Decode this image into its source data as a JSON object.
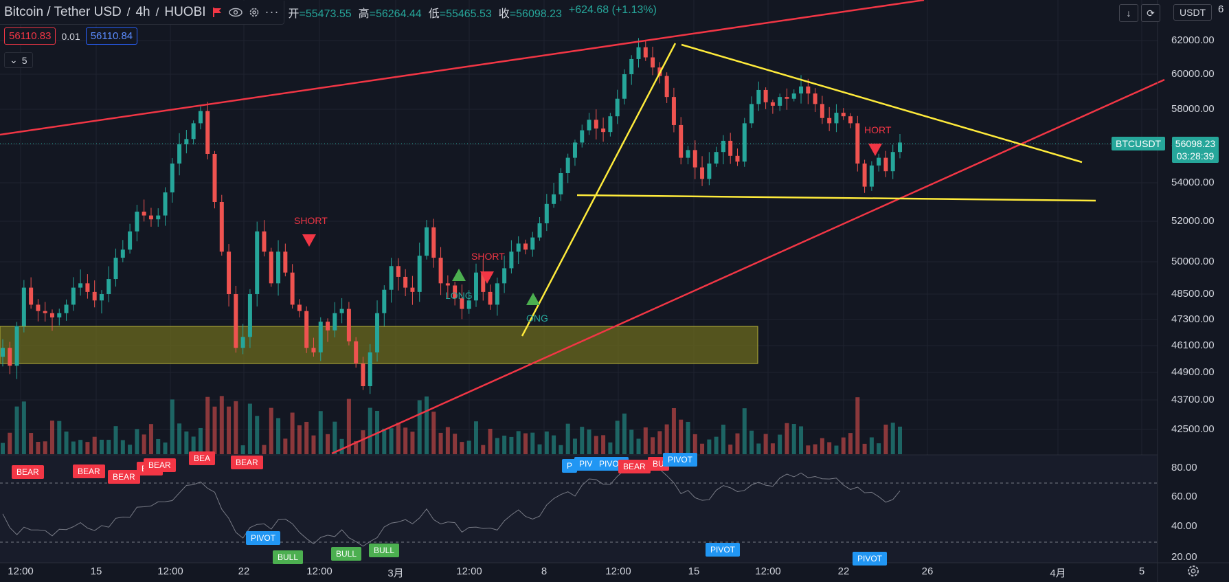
{
  "header": {
    "symbol_title": "Bitcoin / Tether USD",
    "interval": "4h",
    "exchange": "HUOBI",
    "ohlc": [
      {
        "label": "开",
        "value": "=55473.55"
      },
      {
        "label": "高",
        "value": "=56264.44"
      },
      {
        "label": "低",
        "value": "=55465.53"
      },
      {
        "label": "收",
        "value": "=56098.23"
      }
    ],
    "change": "+624.68 (+1.13%)",
    "bid": "56110.83",
    "spread": "0.01",
    "ask": "56110.84",
    "indicator_count": "5",
    "currency": "USDT"
  },
  "price_axis": {
    "labels": [
      "62000.00",
      "60000.00",
      "58000.00",
      "56000.00",
      "54000.00",
      "52000.00",
      "50000.00",
      "48500.00",
      "47300.00",
      "46100.00",
      "44900.00",
      "43700.00",
      "42500.00"
    ],
    "top_clip": "6",
    "last_symbol": "BTCUSDT",
    "last_price": "56098.23",
    "countdown": "03:28:39",
    "osc_labels": [
      "80.00",
      "60.00",
      "40.00",
      "20.00"
    ]
  },
  "time_axis": [
    "12:00",
    "15",
    "12:00",
    "22",
    "12:00",
    "3月",
    "12:00",
    "8",
    "12:00",
    "15",
    "12:00",
    "22",
    "26",
    "4月",
    "5"
  ],
  "signals": [
    {
      "type": "short",
      "text": "SHORT"
    },
    {
      "type": "short",
      "text": "SHORT"
    },
    {
      "type": "long",
      "text": "LONG"
    },
    {
      "type": "long",
      "text": "ONG"
    },
    {
      "type": "short",
      "text": "HORT"
    }
  ],
  "osc_tags": {
    "bear": "BEAR",
    "bull": "BULL",
    "pivot": "PIVOT",
    "bear_partial": "BEA",
    "bull_partial": "BU",
    "pivot_partial": "PIV",
    "pivot_clip": "P"
  },
  "colors": {
    "background": "#131722",
    "up": "#26a69a",
    "down": "#ef5350",
    "trend_red": "#f23645",
    "trend_yellow": "#ffeb3b",
    "zone": "#6b6a1e",
    "pivot": "#2196f3",
    "bull": "#4caf50"
  },
  "chart_data": {
    "type": "candlestick",
    "title": "Bitcoin / Tether USD",
    "ylim": [
      41500,
      63000
    ],
    "x_labels": [
      "12:00",
      "15",
      "12:00",
      "22",
      "12:00",
      "3月",
      "12:00",
      "8",
      "12:00",
      "15",
      "12:00",
      "22",
      "26",
      "4月",
      "5"
    ],
    "close_path": [
      46000,
      45200,
      47000,
      48800,
      48000,
      47700,
      47600,
      47400,
      47600,
      48000,
      48800,
      49000,
      48600,
      48200,
      48500,
      49200,
      50200,
      50600,
      51500,
      52500,
      52300,
      52100,
      52300,
      53500,
      55000,
      56000,
      56300,
      57200,
      57900,
      55500,
      53000,
      50500,
      48500,
      46000,
      46500,
      48500,
      51500,
      50500,
      49000,
      50500,
      49500,
      48000,
      47700,
      46000,
      45800,
      47200,
      46800,
      47600,
      47800,
      46300,
      45300,
      44300,
      45800,
      47600,
      48700,
      49800,
      49300,
      48800,
      48600,
      50300,
      51700,
      50200,
      49000,
      48900,
      48300,
      47800,
      48200,
      49500,
      48600,
      48000,
      49000,
      49700,
      50500,
      50900,
      50600,
      51200,
      51900,
      52900,
      53400,
      54500,
      55300,
      56100,
      56800,
      57400,
      56900,
      56700,
      57600,
      58600,
      60000,
      60900,
      61600,
      61000,
      60400,
      59900,
      58700,
      57100,
      55300,
      55700,
      54800,
      54200,
      55000,
      55600,
      56200,
      55400,
      55100,
      57200,
      58300,
      59100,
      58400,
      58200,
      58700,
      58600,
      58900,
      59300,
      58900,
      58300,
      57500,
      57200,
      57800,
      57600,
      57200,
      55000,
      53800,
      54900,
      55300,
      54600,
      55600,
      56100
    ],
    "volume_profile": "bars per candle",
    "drawings": [
      "rising channel top (red)",
      "rising support (red)",
      "symmetrical triangle (yellow)",
      "demand zone 45800-47500"
    ]
  }
}
